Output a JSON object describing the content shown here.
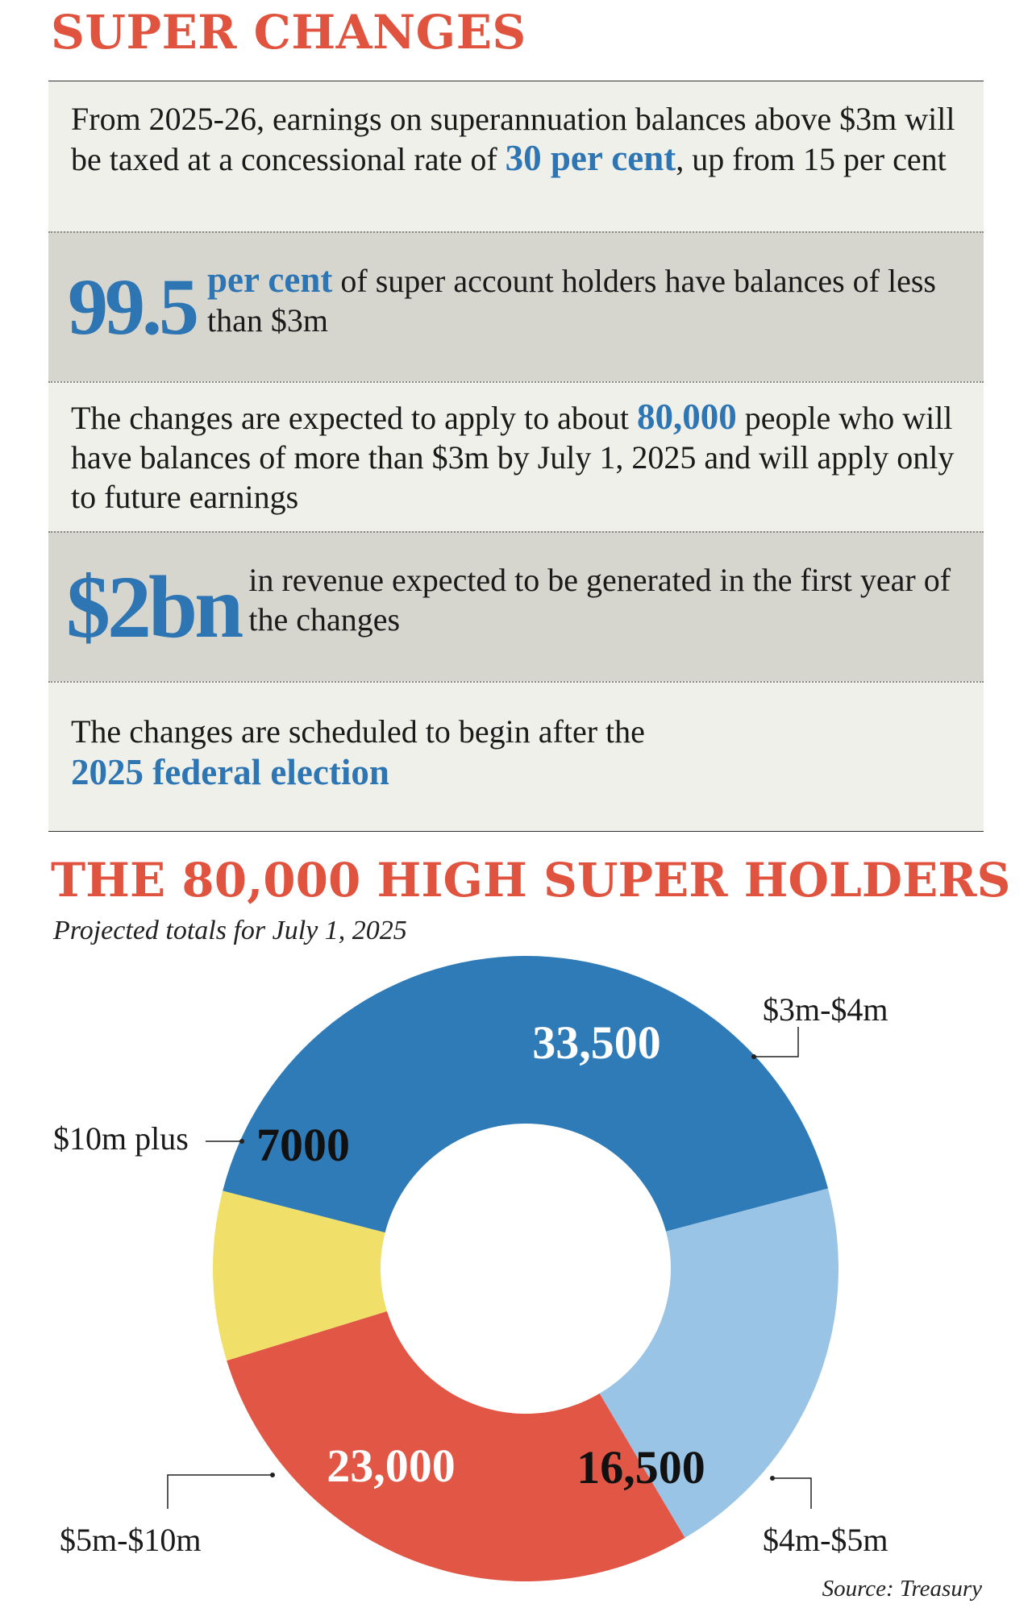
{
  "header": {
    "title": "SUPER CHANGES"
  },
  "panels": {
    "p1": {
      "before": "From 2025-26, earnings on superannuation balances above $3m will be taxed at a concessional rate of ",
      "highlight": "30 per cent",
      "after": ", up from 15 per cent"
    },
    "p2": {
      "big": "99.5",
      "highlight": "per cent",
      "after": " of super account holders have balances of less than $3m"
    },
    "p3": {
      "before": "The changes are expected to apply to about ",
      "highlight": "80,000",
      "after": " people who will have balances of more than $3m by July 1, 2025 and will apply only to future earnings"
    },
    "p4": {
      "big": "$2bn",
      "text": "in revenue expected to be generated in the first year of the changes"
    },
    "p5": {
      "before": "The changes are scheduled to begin after the",
      "highlight": "2025 federal election"
    }
  },
  "colors": {
    "accent_red": "#e0533f",
    "accent_blue": "#2e75b3"
  },
  "chart_data": {
    "type": "pie",
    "title": "THE 80,000 HIGH SUPER HOLDERS",
    "subtitle": "Projected totals for July 1, 2025",
    "source": "Source: Treasury",
    "categories": [
      "$3m-$4m",
      "$4m-$5m",
      "$5m-$10m",
      "$10m plus"
    ],
    "values": [
      33500,
      16500,
      23000,
      7000
    ],
    "value_labels": [
      "33,500",
      "16,500",
      "23,000",
      "7000"
    ],
    "colors": [
      "#2e7bb8",
      "#99c4e5",
      "#e15645",
      "#f0e06a"
    ],
    "label_colors": [
      "#ffffff",
      "#111111",
      "#ffffff",
      "#111111"
    ],
    "donut": true
  }
}
